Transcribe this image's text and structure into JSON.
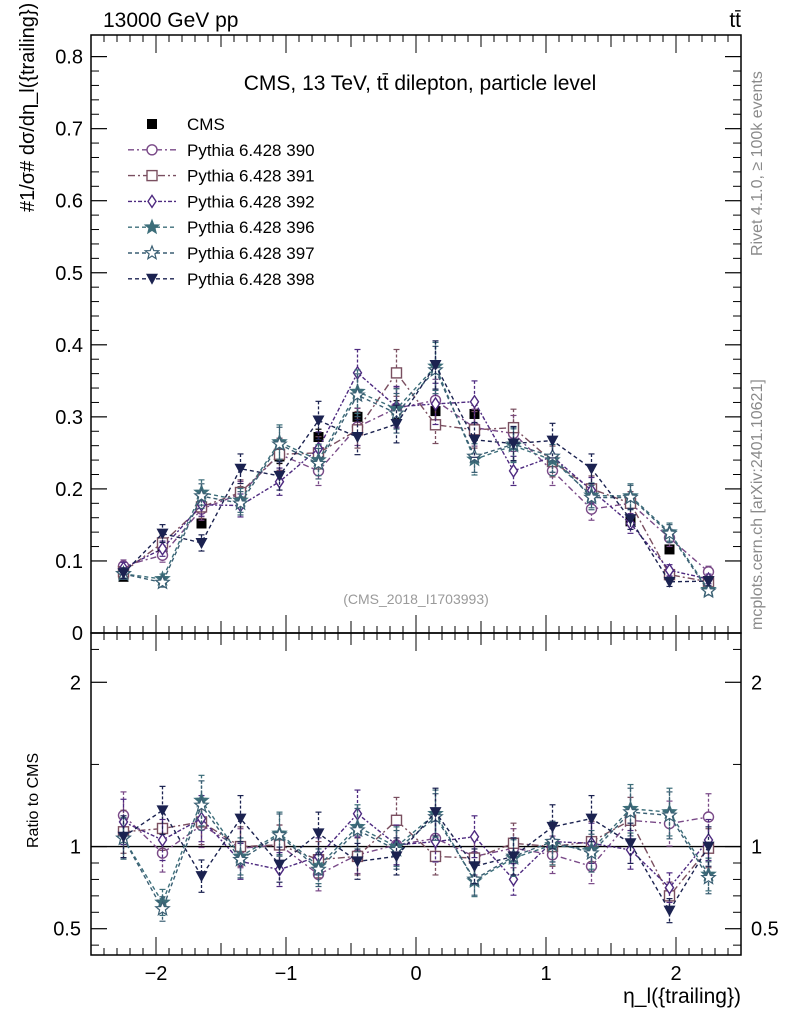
{
  "header": {
    "left": "13000 GeV pp",
    "right": "tt̄"
  },
  "side_labels": {
    "rivet": "Rivet 4.1.0, ≥ 100k events",
    "mcplots": "mcplots.cern.ch [arXiv:2401.10621]"
  },
  "chart_data": [
    {
      "type": "scatter",
      "panel": "main",
      "title": "CMS, 13 TeV, tt̄ dilepton, particle level",
      "watermark": "(CMS_2018_I1703993)",
      "ylabel": "#1/σ# dσ/dη_l({trailing})",
      "xlim": [
        -2.5,
        2.5
      ],
      "ylim": [
        0,
        0.83
      ],
      "yticks": [
        0.1,
        0.2,
        0.3,
        0.4,
        0.5,
        0.6,
        0.7,
        0.8
      ],
      "ytick_labels": [
        "0.1",
        "0.2",
        "0.3",
        "0.4",
        "0.5",
        "0.6",
        "0.7",
        "0.8"
      ],
      "ytick_zero_label": "0",
      "x": [
        -2.25,
        -1.95,
        -1.65,
        -1.35,
        -1.05,
        -0.75,
        -0.45,
        -0.15,
        0.15,
        0.45,
        0.75,
        1.05,
        1.35,
        1.65,
        1.95,
        2.25
      ],
      "legend": {
        "position": "top-left"
      },
      "series": [
        {
          "name": "CMS",
          "color": "#000000",
          "marker": "filled-square",
          "values": [
            0.078,
            0.113,
            0.152,
            0.195,
            0.245,
            0.272,
            0.3,
            0.31,
            0.308,
            0.304,
            0.28,
            0.238,
            0.195,
            0.155,
            0.116,
            0.072
          ]
        },
        {
          "name": "Pythia 6.428 390",
          "color": "#7a4a88",
          "marker": "open-circle",
          "values": [
            0.093,
            0.108,
            0.172,
            0.193,
            0.248,
            0.225,
            0.286,
            0.312,
            0.323,
            0.285,
            0.277,
            0.225,
            0.172,
            0.18,
            0.132,
            0.085
          ]
        },
        {
          "name": "Pythia 6.428 391",
          "color": "#7a4f60",
          "marker": "open-square",
          "values": [
            0.085,
            0.125,
            0.175,
            0.195,
            0.248,
            0.25,
            0.282,
            0.361,
            0.289,
            0.282,
            0.285,
            0.238,
            0.2,
            0.18,
            0.081,
            0.071
          ]
        },
        {
          "name": "Pythia 6.428 392",
          "color": "#4e2a80",
          "marker": "open-diamond",
          "values": [
            0.09,
            0.117,
            0.178,
            0.177,
            0.21,
            0.256,
            0.361,
            0.314,
            0.318,
            0.321,
            0.225,
            0.245,
            0.198,
            0.152,
            0.087,
            0.075
          ]
        },
        {
          "name": "Pythia 6.428 396",
          "color": "#3d6e7a",
          "marker": "filled-star",
          "values": [
            0.082,
            0.075,
            0.195,
            0.184,
            0.265,
            0.24,
            0.335,
            0.311,
            0.37,
            0.241,
            0.26,
            0.24,
            0.191,
            0.19,
            0.14,
            0.06
          ]
        },
        {
          "name": "Pythia 6.428 397",
          "color": "#3a5f73",
          "marker": "open-star",
          "values": [
            0.082,
            0.07,
            0.19,
            0.18,
            0.262,
            0.235,
            0.33,
            0.305,
            0.365,
            0.245,
            0.262,
            0.245,
            0.188,
            0.188,
            0.138,
            0.058
          ]
        },
        {
          "name": "Pythia 6.428 398",
          "color": "#1b2250",
          "marker": "filled-down-triangle",
          "values": [
            0.083,
            0.138,
            0.125,
            0.228,
            0.218,
            0.295,
            0.272,
            0.29,
            0.372,
            0.268,
            0.263,
            0.267,
            0.228,
            0.158,
            0.071,
            0.072
          ]
        }
      ]
    },
    {
      "type": "scatter",
      "panel": "ratio",
      "ylabel": "Ratio to CMS",
      "xlabel": "η_l({trailing})",
      "xlim": [
        -2.5,
        2.5
      ],
      "ylim": [
        0.34,
        2.3
      ],
      "xticks": [
        -2,
        -1,
        0,
        1,
        2
      ],
      "xtick_labels": [
        "−2",
        "−1",
        "0",
        "1",
        "2"
      ],
      "yticks": [
        0.5,
        1,
        2
      ],
      "ytick_labels": [
        "0.5",
        "1",
        "2"
      ],
      "reference_line": 1,
      "series": [
        {
          "name": "Pythia 6.428 390",
          "values": [
            1.19,
            0.96,
            1.13,
            0.99,
            1.01,
            0.83,
            0.95,
            1.01,
            1.05,
            0.94,
            0.99,
            0.95,
            0.88,
            1.16,
            1.14,
            1.18
          ]
        },
        {
          "name": "Pythia 6.428 391",
          "values": [
            1.09,
            1.11,
            1.15,
            1.0,
            1.01,
            0.92,
            0.94,
            1.16,
            0.94,
            0.93,
            1.02,
            1.0,
            1.03,
            1.16,
            0.7,
            0.99
          ]
        },
        {
          "name": "Pythia 6.428 392",
          "values": [
            1.15,
            1.04,
            1.17,
            0.91,
            0.86,
            0.94,
            1.2,
            1.01,
            1.03,
            1.06,
            0.8,
            1.03,
            1.02,
            0.98,
            0.75,
            1.04
          ]
        },
        {
          "name": "Pythia 6.428 396",
          "values": [
            1.05,
            0.66,
            1.28,
            0.94,
            1.08,
            0.88,
            1.12,
            1.0,
            1.2,
            0.79,
            0.93,
            1.01,
            0.98,
            1.23,
            1.21,
            0.83
          ]
        },
        {
          "name": "Pythia 6.428 397",
          "values": [
            1.05,
            0.62,
            1.25,
            0.92,
            1.07,
            0.86,
            1.1,
            0.98,
            1.18,
            0.8,
            0.94,
            1.03,
            0.96,
            1.21,
            1.19,
            0.81
          ]
        },
        {
          "name": "Pythia 6.428 398",
          "values": [
            1.06,
            1.22,
            0.82,
            1.17,
            0.89,
            1.08,
            0.91,
            0.94,
            1.21,
            0.88,
            0.94,
            1.12,
            1.17,
            1.02,
            0.61,
            1.0
          ]
        }
      ]
    }
  ]
}
